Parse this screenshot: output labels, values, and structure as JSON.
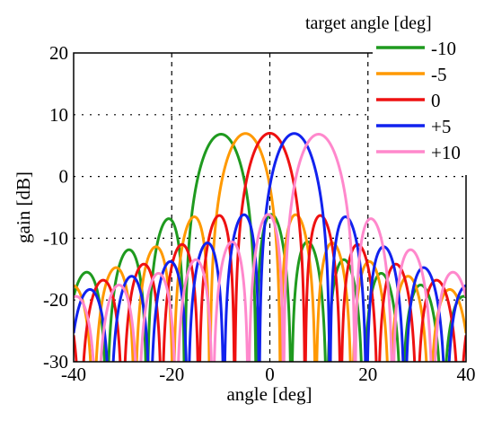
{
  "chart_data": {
    "type": "line",
    "title": "",
    "xlabel": "angle [deg]",
    "ylabel": "gain [dB]",
    "xlim": [
      -40,
      40
    ],
    "ylim": [
      -30,
      20
    ],
    "xticks": [
      -40,
      -20,
      0,
      20,
      40
    ],
    "yticks": [
      -30,
      -20,
      -10,
      0,
      10,
      20
    ],
    "grid": true,
    "legend": {
      "title": "target angle [deg]",
      "placement": "top-right, outside plot area"
    },
    "series": [
      {
        "name": "-10",
        "color": "#1f9a1f",
        "target": -10
      },
      {
        "name": "-5",
        "color": "#ff9900",
        "target": -5
      },
      {
        "name": "0",
        "color": "#ee1111",
        "target": 0
      },
      {
        "name": "+5",
        "color": "#1122ee",
        "target": 5
      },
      {
        "name": "+10",
        "color": "#ff88cc",
        "target": 10
      }
    ]
  }
}
